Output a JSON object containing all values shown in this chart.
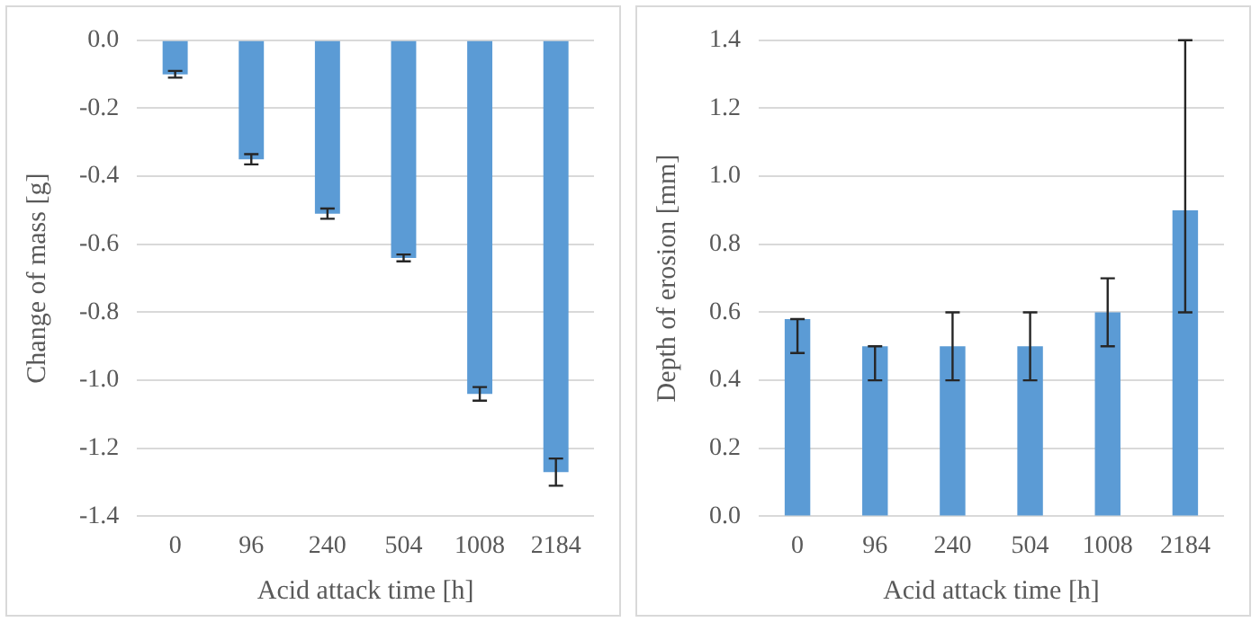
{
  "chart_data": [
    {
      "type": "bar",
      "xlabel": "Acid attack time [h]",
      "ylabel": "Change of mass [g]",
      "categories": [
        "0",
        "96",
        "240",
        "504",
        "1008",
        "2184"
      ],
      "values": [
        -0.1,
        -0.35,
        -0.51,
        -0.64,
        -1.04,
        -1.27
      ],
      "color": "#5b9bd5",
      "errors": [
        0.01,
        0.015,
        0.015,
        0.01,
        0.02,
        0.04
      ],
      "ylim": [
        -1.4,
        0
      ],
      "yticks": [
        {
          "value": -1.4,
          "label": "-1.4"
        },
        {
          "value": -1.2,
          "label": "-1.2"
        },
        {
          "value": -1.0,
          "label": "-1.0"
        },
        {
          "value": -0.8,
          "label": "-0.8"
        },
        {
          "value": -0.6,
          "label": "-0.6"
        },
        {
          "value": -0.4,
          "label": "-0.4"
        },
        {
          "value": -0.2,
          "label": "-0.2"
        },
        {
          "value": 0,
          "label": "0.0"
        }
      ],
      "grid": "y"
    },
    {
      "type": "bar",
      "xlabel": "Acid attack time [h]",
      "ylabel": "Depth of erosion [mm]",
      "categories": [
        "0",
        "96",
        "240",
        "504",
        "1008",
        "2184"
      ],
      "values": [
        0.58,
        0.5,
        0.5,
        0.5,
        0.6,
        0.9
      ],
      "color": "#5b9bd5",
      "errors": [
        [
          0.48,
          0.58
        ],
        [
          0.4,
          0.5
        ],
        [
          0.4,
          0.6
        ],
        [
          0.4,
          0.6
        ],
        [
          0.5,
          0.7
        ],
        [
          0.6,
          1.4
        ]
      ],
      "ylim": [
        0,
        1.4
      ],
      "yticks": [
        {
          "value": 0,
          "label": "0.0"
        },
        {
          "value": 0.2,
          "label": "0.2"
        },
        {
          "value": 0.4,
          "label": "0.4"
        },
        {
          "value": 0.6,
          "label": "0.6"
        },
        {
          "value": 0.8,
          "label": "0.8"
        },
        {
          "value": 1.0,
          "label": "1.0"
        },
        {
          "value": 1.2,
          "label": "1.2"
        },
        {
          "value": 1.4,
          "label": "1.4"
        }
      ],
      "grid": "y"
    }
  ]
}
